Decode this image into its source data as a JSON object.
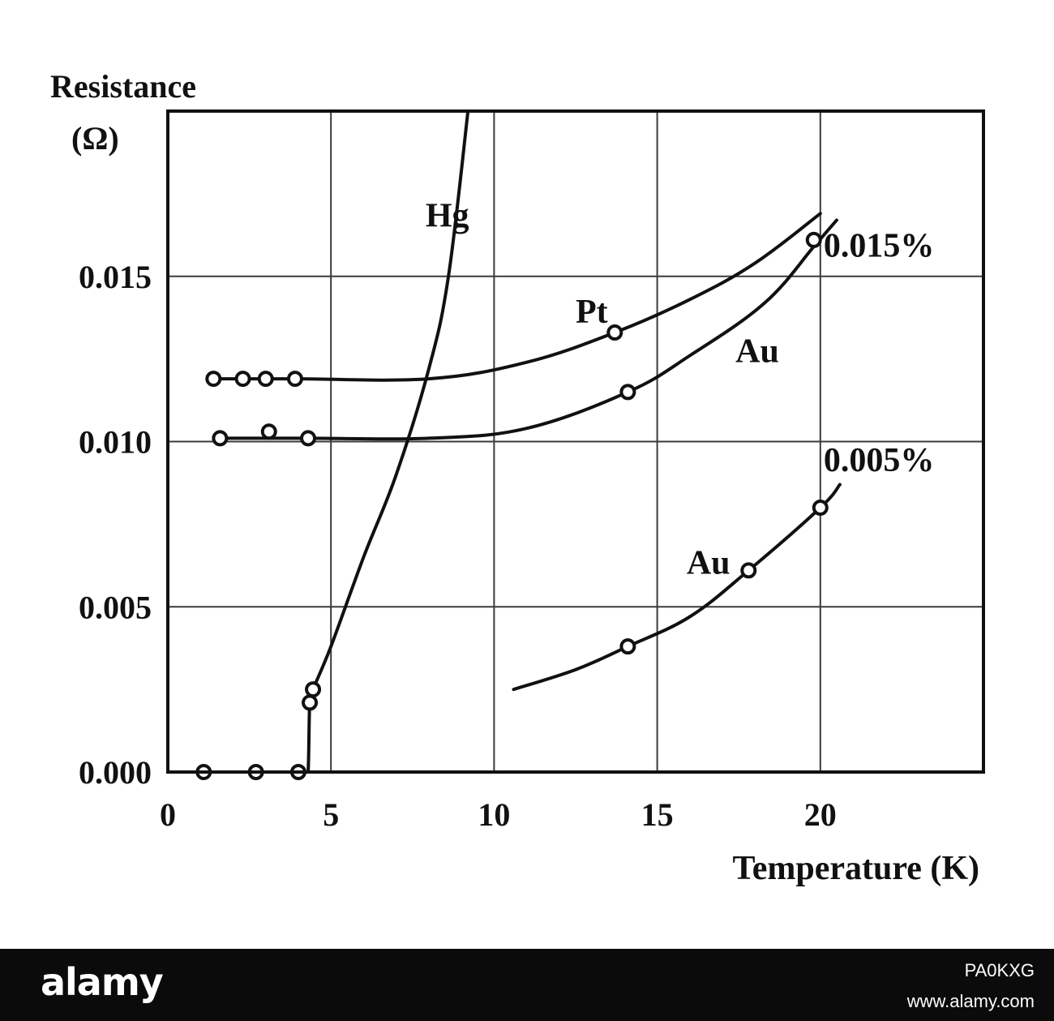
{
  "chart_data": {
    "type": "line",
    "title": "",
    "ylabel_lines": [
      "Resistance",
      "(Ω)"
    ],
    "xlabel": "Temperature (K)",
    "xlim": [
      0,
      25
    ],
    "ylim": [
      0,
      0.02
    ],
    "x_ticks": [
      {
        "value": 0,
        "label": "0"
      },
      {
        "value": 5,
        "label": "5"
      },
      {
        "value": 10,
        "label": "10"
      },
      {
        "value": 15,
        "label": "15"
      },
      {
        "value": 20,
        "label": "20"
      }
    ],
    "y_ticks": [
      {
        "value": 0.0,
        "label": "0.000"
      },
      {
        "value": 0.005,
        "label": "0.005"
      },
      {
        "value": 0.01,
        "label": "0.010"
      },
      {
        "value": 0.015,
        "label": "0.015"
      }
    ],
    "grid": true,
    "series": [
      {
        "name": "Hg",
        "curve": [
          [
            1.1,
            0.0
          ],
          [
            4.2,
            0.0
          ],
          [
            4.3,
            0.0
          ],
          [
            4.35,
            0.0021
          ],
          [
            4.45,
            0.0025
          ],
          [
            5.0,
            0.0038
          ],
          [
            6.0,
            0.0065
          ],
          [
            7.0,
            0.009
          ],
          [
            8.0,
            0.0122
          ],
          [
            8.6,
            0.015
          ],
          [
            9.2,
            0.02
          ]
        ],
        "points": [
          [
            1.1,
            0.0
          ],
          [
            2.7,
            0.0
          ],
          [
            4.0,
            0.0
          ],
          [
            4.35,
            0.0021
          ],
          [
            4.45,
            0.0025
          ]
        ]
      },
      {
        "name": "Pt",
        "curve": [
          [
            1.4,
            0.0119
          ],
          [
            4,
            0.0119
          ],
          [
            8,
            0.0119
          ],
          [
            11,
            0.0124
          ],
          [
            13.7,
            0.0133
          ],
          [
            16,
            0.0143
          ],
          [
            18,
            0.0154
          ],
          [
            20,
            0.0169
          ]
        ],
        "points": [
          [
            1.4,
            0.0119
          ],
          [
            2.3,
            0.0119
          ],
          [
            3.0,
            0.0119
          ],
          [
            3.9,
            0.0119
          ],
          [
            13.7,
            0.0133
          ]
        ]
      },
      {
        "name": "Au 0.015%",
        "curve": [
          [
            1.6,
            0.0101
          ],
          [
            4.3,
            0.0101
          ],
          [
            8,
            0.0101
          ],
          [
            11,
            0.0104
          ],
          [
            14.1,
            0.0115
          ],
          [
            16,
            0.0126
          ],
          [
            18.3,
            0.0142
          ],
          [
            19.8,
            0.0159
          ],
          [
            20.5,
            0.0167
          ]
        ],
        "points": [
          [
            1.6,
            0.0101
          ],
          [
            3.1,
            0.0103
          ],
          [
            4.3,
            0.0101
          ],
          [
            14.1,
            0.0115
          ],
          [
            19.8,
            0.0161
          ]
        ]
      },
      {
        "name": "Au 0.005%",
        "curve": [
          [
            10.6,
            0.0025
          ],
          [
            12.5,
            0.0031
          ],
          [
            14.1,
            0.0038
          ],
          [
            16,
            0.0047
          ],
          [
            17.8,
            0.0061
          ],
          [
            20.0,
            0.008
          ],
          [
            20.6,
            0.0087
          ]
        ],
        "points": [
          [
            14.1,
            0.0038
          ],
          [
            17.8,
            0.0061
          ],
          [
            20.0,
            0.008
          ]
        ]
      }
    ],
    "annotations": [
      {
        "text": "Hg",
        "x": 7.9,
        "y": 0.0165
      },
      {
        "text": "Pt",
        "x": 12.5,
        "y": 0.0136
      },
      {
        "text": "Au",
        "x": 17.4,
        "y": 0.0124
      },
      {
        "text": "0.015%",
        "x": 20.1,
        "y": 0.0156
      },
      {
        "text": "0.005%",
        "x": 20.1,
        "y": 0.0091
      },
      {
        "text": "Au",
        "x": 15.9,
        "y": 0.006
      }
    ]
  },
  "footer": {
    "brand": "alamy",
    "image_id": "PA0KXG",
    "site": "www.alamy.com"
  }
}
